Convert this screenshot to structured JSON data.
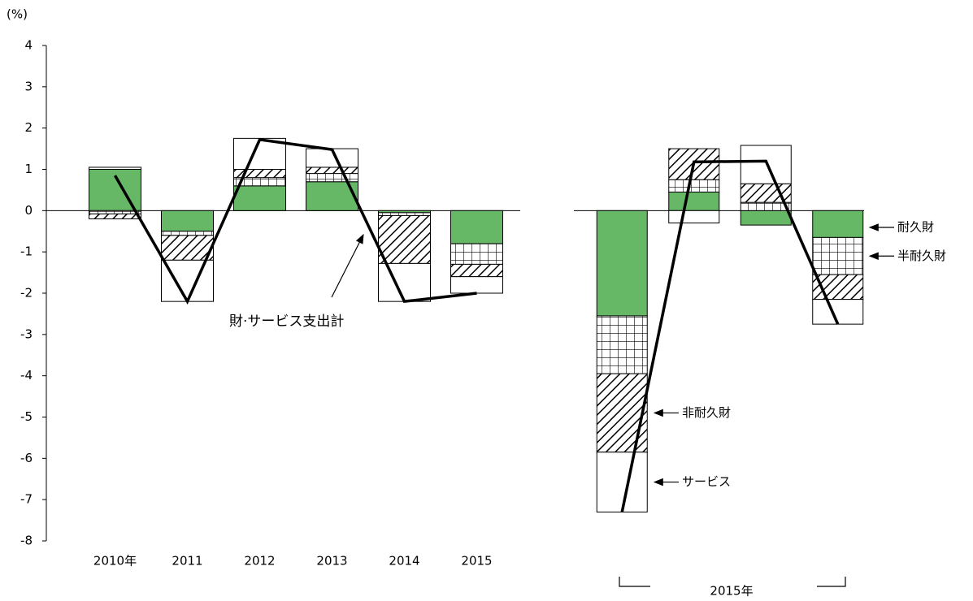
{
  "chart_data": [
    {
      "type": "bar",
      "stacked": true,
      "y_unit_label": "(%)",
      "categories": [
        "2010年",
        "2011",
        "2012",
        "2013",
        "2014",
        "2015"
      ],
      "ylim": [
        -8,
        4
      ],
      "yticks": [
        -8,
        -7,
        -6,
        -5,
        -4,
        -3,
        -2,
        -1,
        0,
        1,
        2,
        3,
        4
      ],
      "series": [
        {
          "color": "#66b866",
          "pattern": "solid",
          "values": [
            1.0,
            -0.5,
            0.6,
            0.7,
            -0.05,
            -0.8
          ]
        },
        {
          "color": "#000000",
          "pattern": "grid",
          "values": [
            -0.08,
            -0.1,
            0.2,
            0.2,
            -0.07,
            -0.5
          ]
        },
        {
          "color": "#000000",
          "pattern": "hatch",
          "values": [
            -0.12,
            -0.6,
            0.2,
            0.15,
            -1.16,
            -0.3
          ]
        },
        {
          "color": "#000000",
          "pattern": "none",
          "values": [
            0.05,
            -1.0,
            0.75,
            0.45,
            -0.92,
            -0.4
          ]
        }
      ],
      "line": {
        "name": "財·サービス支出計",
        "color": "#000000",
        "values": [
          0.85,
          -2.2,
          1.72,
          1.48,
          -2.2,
          -2.0
        ]
      }
    },
    {
      "type": "bar",
      "stacked": true,
      "group_label": "2015年",
      "categories": [
        null,
        null,
        null,
        null
      ],
      "ylim": [
        -8,
        4
      ],
      "series": [
        {
          "name": "耐久財",
          "color": "#66b866",
          "pattern": "solid",
          "values": [
            -2.55,
            0.45,
            -0.35,
            -0.65
          ]
        },
        {
          "name": "半耐久財",
          "color": "#000000",
          "pattern": "grid",
          "values": [
            -1.4,
            0.3,
            0.2,
            -0.9
          ]
        },
        {
          "name": "非耐久財",
          "color": "#000000",
          "pattern": "hatch",
          "values": [
            -1.9,
            0.75,
            0.45,
            -0.6
          ]
        },
        {
          "name": "サービス",
          "color": "#000000",
          "pattern": "none",
          "values": [
            -1.45,
            -0.3,
            0.93,
            -0.6
          ]
        }
      ],
      "line": {
        "color": "#000000",
        "values": [
          -7.3,
          1.18,
          1.2,
          -2.75
        ]
      }
    }
  ]
}
